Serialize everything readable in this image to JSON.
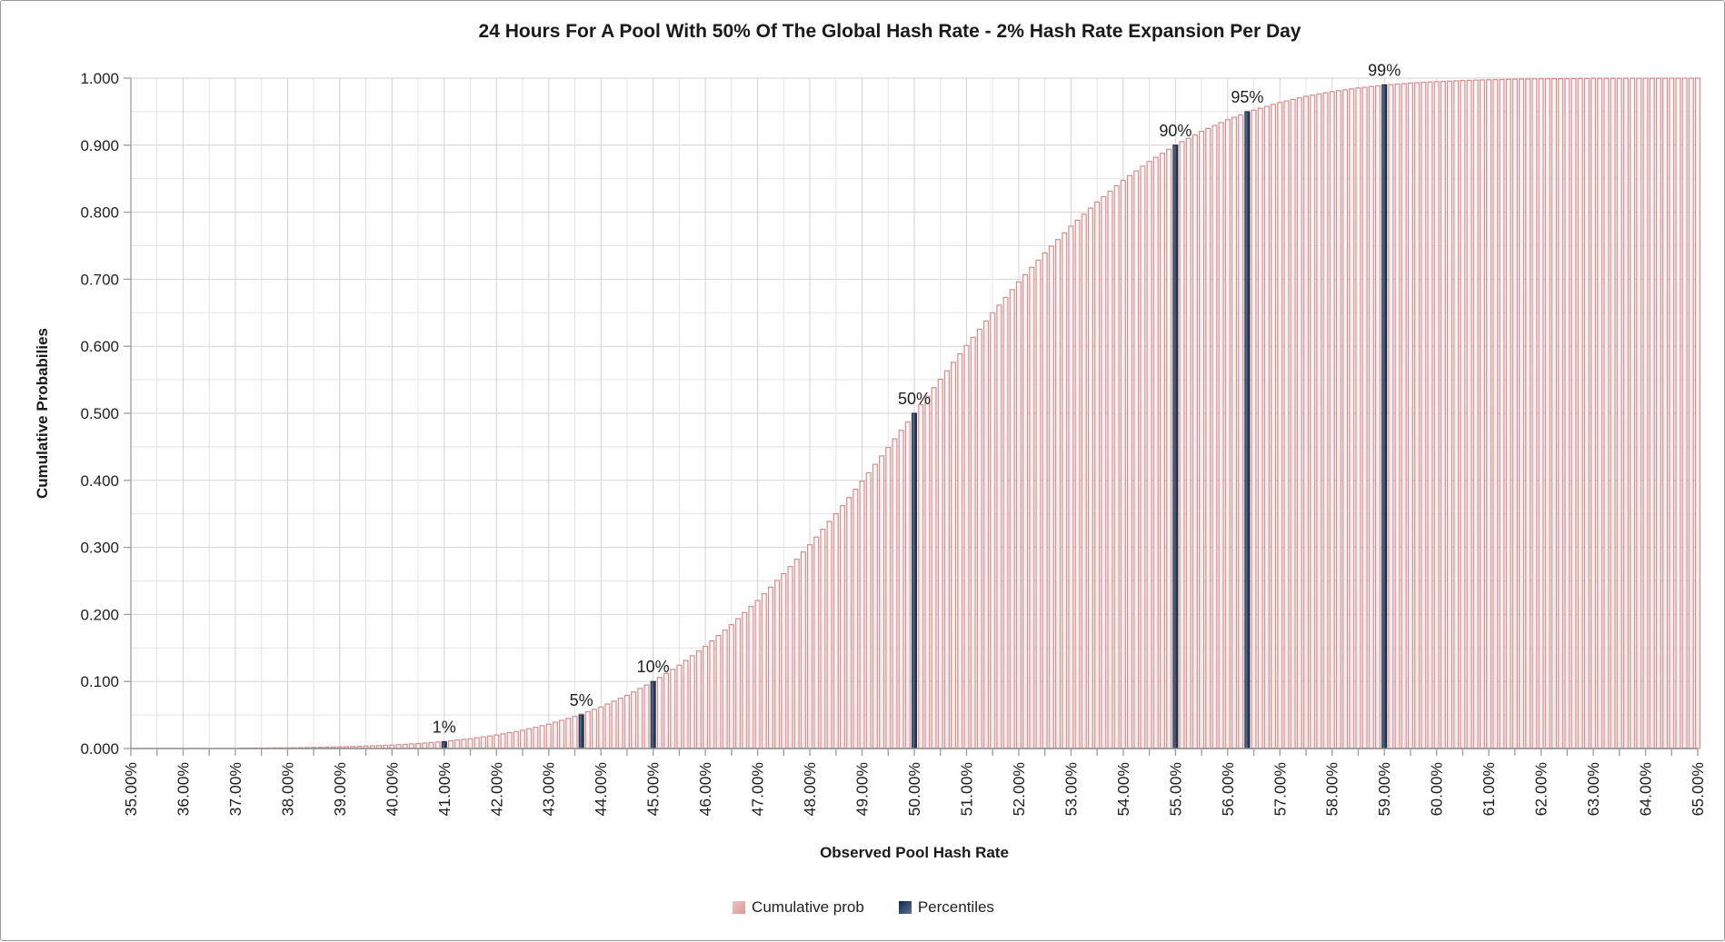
{
  "chart_data": {
    "type": "bar",
    "title": "24 Hours For A Pool With 50% Of The Global Hash Rate - 2% Hash Rate Expansion Per Day",
    "xlabel": "Observed Pool Hash Rate",
    "ylabel": "Cumulative Probabilies",
    "legend": [
      {
        "label": "Cumulative prob",
        "swatch": "pink"
      },
      {
        "label": "Percentiles",
        "swatch": "navy"
      }
    ],
    "legend_position": "bottom-center",
    "grid": "on",
    "xlim": [
      35,
      65
    ],
    "ylim": [
      0,
      1
    ],
    "x_tick_labels": [
      "35.00%",
      "36.00%",
      "37.00%",
      "38.00%",
      "39.00%",
      "40.00%",
      "41.00%",
      "42.00%",
      "43.00%",
      "44.00%",
      "45.00%",
      "46.00%",
      "47.00%",
      "48.00%",
      "49.00%",
      "50.00%",
      "51.00%",
      "52.00%",
      "53.00%",
      "54.00%",
      "55.00%",
      "56.00%",
      "57.00%",
      "58.00%",
      "59.00%",
      "60.00%",
      "61.00%",
      "62.00%",
      "63.00%",
      "64.00%",
      "65.00%"
    ],
    "y_tick_labels": [
      "0.000",
      "0.100",
      "0.200",
      "0.300",
      "0.400",
      "0.500",
      "0.600",
      "0.700",
      "0.800",
      "0.900",
      "1.000"
    ],
    "x_minor_grid_step_pct": 0.5,
    "y_minor_grid_step": 0.05,
    "bar_pitch_pct": 0.125,
    "cumulative_prob_series": {
      "name": "Cumulative prob",
      "x_start_pct": 35.0,
      "x_step_pct": 0.5,
      "values": [
        0.0001,
        0.0001,
        0.0002,
        0.0003,
        0.0004,
        0.0007,
        0.001,
        0.0016,
        0.0024,
        0.0036,
        0.0052,
        0.0074,
        0.0105,
        0.0146,
        0.0201,
        0.0272,
        0.0363,
        0.0478,
        0.062,
        0.0793,
        0.0999,
        0.1243,
        0.1525,
        0.1848,
        0.2209,
        0.2607,
        0.304,
        0.3502,
        0.3988,
        0.4491,
        0.5,
        0.5509,
        0.6012,
        0.6498,
        0.696,
        0.7393,
        0.7791,
        0.8152,
        0.8475,
        0.8757,
        0.9001,
        0.9207,
        0.938,
        0.9522,
        0.9637,
        0.9728,
        0.9799,
        0.9854,
        0.9895,
        0.9926,
        0.9948,
        0.9964,
        0.9976,
        0.9984,
        0.999,
        0.9993,
        0.9996,
        0.9997,
        0.9998,
        0.9999,
        1.0
      ]
    },
    "percentiles": [
      {
        "label": "1%",
        "x_pct": 41.0,
        "value": 0.01
      },
      {
        "label": "5%",
        "x_pct": 43.6,
        "value": 0.05
      },
      {
        "label": "10%",
        "x_pct": 45.0,
        "value": 0.1
      },
      {
        "label": "50%",
        "x_pct": 50.0,
        "value": 0.5
      },
      {
        "label": "90%",
        "x_pct": 55.0,
        "value": 0.9
      },
      {
        "label": "95%",
        "x_pct": 56.4,
        "value": 0.95
      },
      {
        "label": "99%",
        "x_pct": 59.05,
        "value": 0.99
      }
    ],
    "colors": {
      "bar_fill": "#f3e9e9",
      "bar_fill_top": "#faf4f4",
      "bar_edge": "#d48f8f",
      "percentile_fill": "#3d5474",
      "percentile_fill_light": "#7388aa",
      "percentile_edge": "#16263c",
      "grid_minor": "#e3e3e3",
      "grid_major": "#d2d2d2",
      "axis": "#9b9b9b",
      "text": "#1f1f1f"
    }
  }
}
